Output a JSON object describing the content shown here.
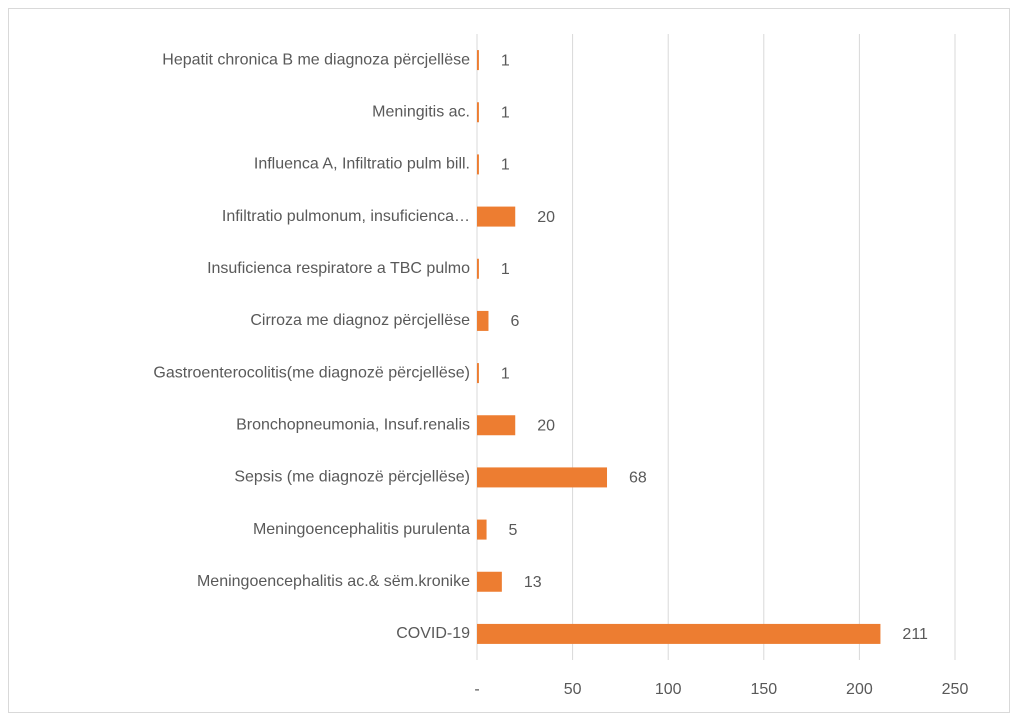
{
  "chart_data": {
    "type": "bar",
    "orientation": "horizontal",
    "categories": [
      "Hepatit chronica B me diagnoza përcjellëse",
      "Meningitis ac.",
      "Influenca A, Infiltratio pulm bill.",
      "Infiltratio pulmonum, insuficienca…",
      "Insuficienca respiratore a TBC pulmo",
      "Cirroza me diagnoz përcjellëse",
      "Gastroenterocolitis(me diagnozë përcjellëse)",
      "Bronchopneumonia, Insuf.renalis",
      "Sepsis (me diagnozë përcjellëse)",
      "Meningoencephalitis purulenta",
      "Meningoencephalitis ac.& sëm.kronike",
      "COVID-19"
    ],
    "values": [
      1,
      1,
      1,
      20,
      1,
      6,
      1,
      20,
      68,
      5,
      13,
      211
    ],
    "color": "#ED7D31",
    "xlim": [
      0,
      250
    ],
    "xticks": [
      {
        "value": 0,
        "label": "-"
      },
      50,
      100,
      150,
      200,
      250
    ],
    "grid": true
  }
}
